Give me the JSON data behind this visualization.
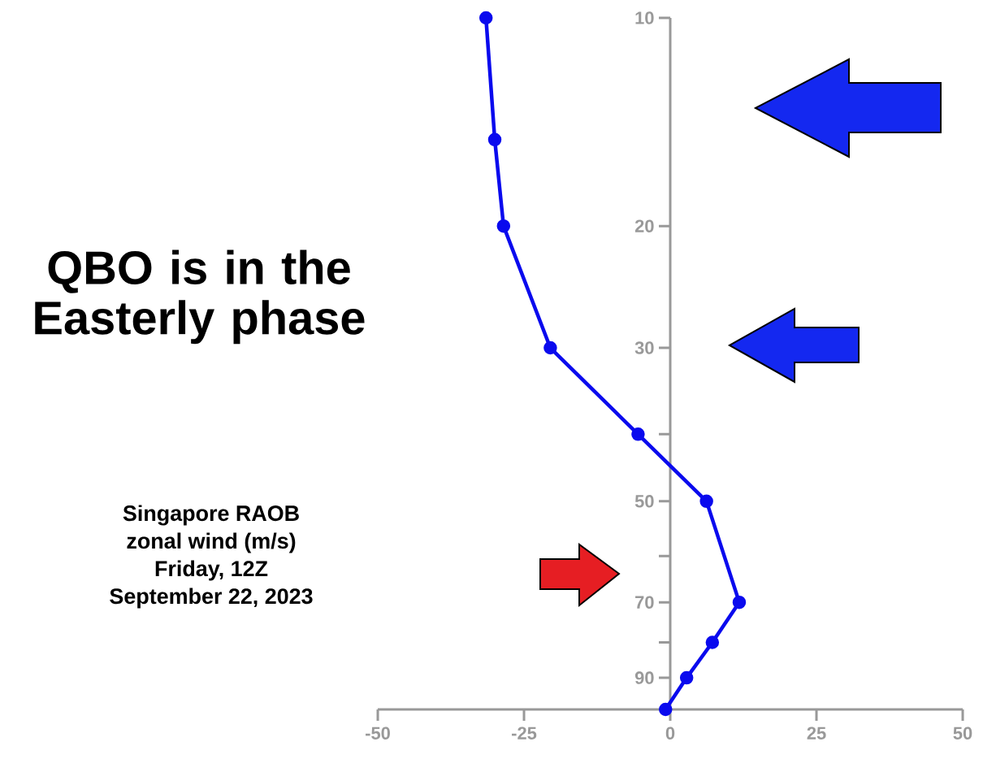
{
  "chart_data": {
    "type": "line",
    "title": "QBO is in the Easterly phase",
    "annotations": [
      "Singapore RAOB",
      "zonal wind (m/s)",
      "Friday, 12Z",
      "September 22, 2023"
    ],
    "x": [
      -31.5,
      -30,
      -28.5,
      -20.5,
      -5.5,
      6.2,
      11.8,
      7.2,
      2.8,
      -0.8
    ],
    "series": [
      {
        "color": "#0a0aee",
        "values": [
          10,
          15,
          20,
          30,
          40,
          50,
          70,
          80,
          90,
          100
        ]
      }
    ],
    "xlim": [
      -50,
      50
    ],
    "xticks": [
      -50,
      -25,
      0,
      25,
      50
    ],
    "ylim": [
      100,
      10
    ],
    "log": "y",
    "yticks": [
      10,
      20,
      30,
      {
        "value": 40,
        "label": null
      },
      50,
      {
        "value": 60,
        "label": null
      },
      70,
      {
        "value": 80,
        "label": null
      },
      90
    ],
    "marker": "circle",
    "line_style": "solid",
    "grid": false
  }
}
